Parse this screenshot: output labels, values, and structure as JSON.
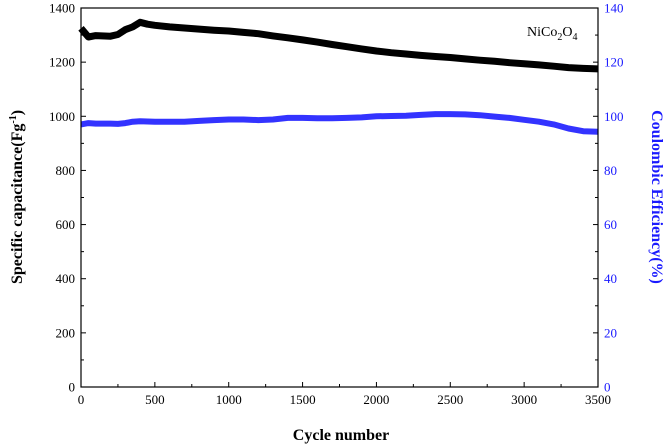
{
  "chart_data": {
    "type": "line",
    "xlabel": "Cycle number",
    "ylabel_left": "Specific capacitance(Fg",
    "ylabel_left_sup": "-1",
    "ylabel_left_tail": ")",
    "ylabel_right": "Coulombic Efficiency(%)",
    "xlim": [
      0,
      3500
    ],
    "ylim_left": [
      0,
      1400
    ],
    "ylim_right": [
      0,
      140
    ],
    "xticks": [
      0,
      500,
      1000,
      1500,
      2000,
      2500,
      3000,
      3500
    ],
    "yticks_left": [
      0,
      200,
      400,
      600,
      800,
      1000,
      1200,
      1400
    ],
    "yticks_right": [
      0,
      20,
      40,
      60,
      80,
      100,
      120,
      140
    ],
    "annotation": {
      "base": "NiCo",
      "sub1": "2",
      "mid": "O",
      "sub2": "4"
    },
    "colors": {
      "capacitance": "#000000",
      "efficiency": "#3333ff",
      "right_axis": "#1a1aff"
    },
    "series": [
      {
        "axis": "left",
        "x": [
          0,
          50,
          100,
          200,
          250,
          300,
          350,
          400,
          450,
          500,
          600,
          700,
          800,
          900,
          1000,
          1100,
          1200,
          1300,
          1400,
          1500,
          1600,
          1700,
          1800,
          1900,
          2000,
          2100,
          2200,
          2300,
          2400,
          2500,
          2600,
          2700,
          2800,
          2900,
          3000,
          3100,
          3200,
          3300,
          3400,
          3500
        ],
        "y": [
          1325,
          1293,
          1298,
          1296,
          1302,
          1320,
          1330,
          1347,
          1340,
          1336,
          1330,
          1326,
          1322,
          1318,
          1315,
          1310,
          1305,
          1297,
          1290,
          1282,
          1274,
          1265,
          1257,
          1249,
          1241,
          1235,
          1230,
          1225,
          1221,
          1217,
          1212,
          1207,
          1203,
          1198,
          1194,
          1190,
          1185,
          1180,
          1177,
          1175
        ]
      },
      {
        "axis": "right",
        "x": [
          0,
          50,
          100,
          200,
          250,
          300,
          350,
          400,
          500,
          600,
          700,
          800,
          900,
          1000,
          1100,
          1200,
          1300,
          1400,
          1500,
          1600,
          1700,
          1800,
          1900,
          2000,
          2100,
          2200,
          2300,
          2400,
          2500,
          2600,
          2700,
          2800,
          2900,
          3000,
          3100,
          3200,
          3300,
          3400,
          3500
        ],
        "y": [
          97.0,
          97.5,
          97.3,
          97.3,
          97.2,
          97.5,
          98.0,
          98.2,
          98.0,
          98.0,
          98.0,
          98.3,
          98.6,
          98.8,
          98.8,
          98.6,
          98.8,
          99.4,
          99.4,
          99.3,
          99.3,
          99.4,
          99.6,
          100.0,
          100.1,
          100.2,
          100.5,
          100.8,
          100.8,
          100.7,
          100.4,
          99.9,
          99.4,
          98.7,
          98.0,
          97.0,
          95.5,
          94.5,
          94.3
        ]
      }
    ]
  }
}
